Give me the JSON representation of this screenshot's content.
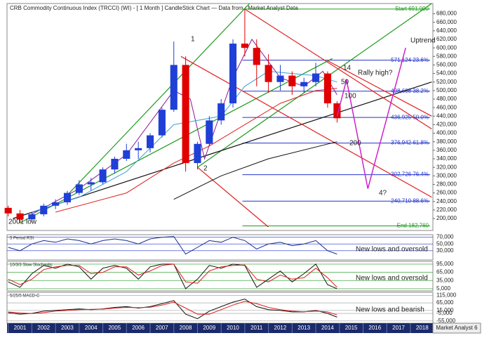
{
  "chart_data": [
    {
      "type": "candlestick",
      "title": "CRB Commodity Continuous Index (TRCCI) (WI) -  [ 1 Month ] CandleStick Chart — Data from : Market Analyst Data",
      "x": [
        2001.0,
        2001.5,
        2002.0,
        2002.5,
        2003.0,
        2003.5,
        2004.0,
        2004.5,
        2005.0,
        2005.5,
        2006.0,
        2006.5,
        2007.0,
        2007.5,
        2008.0,
        2008.5,
        2009.0,
        2009.5,
        2010.0,
        2010.5,
        2011.0,
        2011.5,
        2012.0,
        2012.5,
        2013.0,
        2013.5,
        2014.0,
        2014.5,
        2014.9
      ],
      "open": [
        225000,
        212000,
        198000,
        210000,
        230000,
        238000,
        260000,
        280000,
        285000,
        315000,
        340000,
        360000,
        365000,
        395000,
        455000,
        560000,
        330000,
        375000,
        430000,
        470000,
        610000,
        600000,
        560000,
        520000,
        535000,
        510000,
        520000,
        540000,
        470000
      ],
      "high": [
        230000,
        220000,
        215000,
        235000,
        245000,
        265000,
        290000,
        295000,
        320000,
        345000,
        375000,
        380000,
        400000,
        460000,
        615000,
        580000,
        380000,
        440000,
        480000,
        620000,
        691000,
        620000,
        585000,
        560000,
        545000,
        530000,
        565000,
        545000,
        475000
      ],
      "low": [
        205000,
        190000,
        192000,
        205000,
        222000,
        232000,
        255000,
        265000,
        280000,
        305000,
        335000,
        340000,
        355000,
        390000,
        450000,
        310000,
        315000,
        370000,
        420000,
        460000,
        580000,
        510000,
        495000,
        500000,
        490000,
        495000,
        510000,
        460000,
        425000
      ],
      "close": [
        212000,
        198000,
        210000,
        230000,
        238000,
        260000,
        280000,
        285000,
        315000,
        340000,
        360000,
        365000,
        395000,
        455000,
        560000,
        330000,
        375000,
        430000,
        470000,
        610000,
        600000,
        560000,
        520000,
        535000,
        510000,
        520000,
        540000,
        470000,
        435000
      ],
      "up_color": "#1f3fd6",
      "down_color": "#e00000",
      "xlim": [
        2000.95,
        2018.95
      ],
      "xticks": [
        2001,
        2002,
        2003,
        2004,
        2005,
        2006,
        2007,
        2008,
        2009,
        2010,
        2011,
        2012,
        2013,
        2014,
        2015,
        2016,
        2017,
        2018
      ],
      "ylim": [
        172000,
        704000
      ],
      "yticks": [
        {
          "value": 200000,
          "label": "200,000"
        },
        {
          "value": 220000,
          "label": "220,000"
        },
        {
          "value": 240000,
          "label": "240,000"
        },
        {
          "value": 260000,
          "label": "260,000"
        },
        {
          "value": 280000,
          "label": "280,000"
        },
        {
          "value": 300000,
          "label": "300,000"
        },
        {
          "value": 320000,
          "label": "320,000"
        },
        {
          "value": 340000,
          "label": "340,000"
        },
        {
          "value": 360000,
          "label": "360,000"
        },
        {
          "value": 380000,
          "label": "380,000"
        },
        {
          "value": 400000,
          "label": "400,000"
        },
        {
          "value": 420000,
          "label": "420,000"
        },
        {
          "value": 440000,
          "label": "440,000"
        },
        {
          "value": 460000,
          "label": "460,000"
        },
        {
          "value": 480000,
          "label": "480,000"
        },
        {
          "value": 500000,
          "label": "500,000"
        },
        {
          "value": 520000,
          "label": "520,000"
        },
        {
          "value": 540000,
          "label": "540,000"
        },
        {
          "value": 560000,
          "label": "560,000"
        },
        {
          "value": 580000,
          "label": "580,000"
        },
        {
          "value": 600000,
          "label": "600,000"
        },
        {
          "value": 620000,
          "label": "620,000"
        },
        {
          "value": 640000,
          "label": "640,000"
        },
        {
          "value": 660000,
          "label": "660,000"
        },
        {
          "value": 680000,
          "label": "680,000"
        }
      ],
      "moving_averages": [
        {
          "name": "14",
          "color": "#8a1a9a",
          "x": [
            2002,
            2004,
            2006,
            2008,
            2008.7,
            2009.3,
            2010.5,
            2011.3,
            2012.5,
            2013.5,
            2014.3,
            2014.9
          ],
          "values": [
            210000,
            270000,
            350000,
            500000,
            480000,
            340000,
            530000,
            620000,
            530000,
            510000,
            545000,
            490000
          ]
        },
        {
          "name": "50",
          "color": "#3aa0d8",
          "x": [
            2002,
            2004,
            2006,
            2008,
            2009,
            2010,
            2011,
            2012,
            2013,
            2014,
            2014.9
          ],
          "values": [
            215000,
            250000,
            310000,
            420000,
            430000,
            440000,
            510000,
            545000,
            540000,
            535000,
            520000
          ]
        },
        {
          "name": "100",
          "color": "#e02020",
          "x": [
            2003,
            2006,
            2008,
            2009.5,
            2011,
            2012.5,
            2014,
            2014.9
          ],
          "values": [
            215000,
            260000,
            330000,
            370000,
            420000,
            470000,
            500000,
            505000
          ]
        },
        {
          "name": "200",
          "color": "#111111",
          "x": [
            2008,
            2010,
            2012,
            2014.9
          ],
          "values": [
            245000,
            300000,
            340000,
            380000
          ]
        }
      ],
      "fib_levels": [
        {
          "value": 691090,
          "label": "Start 691,090",
          "color": "#1a9a1a"
        },
        {
          "value": 571124,
          "label": "571,124 23.6%",
          "color": "#2233cc"
        },
        {
          "value": 498608,
          "label": "498,608 38.2%",
          "color": "#2233cc"
        },
        {
          "value": 436925,
          "label": "436,925 50.0%",
          "color": "#2233cc"
        },
        {
          "value": 376942,
          "label": "376,942 61.8%",
          "color": "#2233cc"
        },
        {
          "value": 302726,
          "label": "302,726 76.4%",
          "color": "#2233cc"
        },
        {
          "value": 240710,
          "label": "240,710 88.6%",
          "color": "#2233cc"
        },
        {
          "value": 182760,
          "label": "End 182,760",
          "color": "#1a9a1a"
        }
      ],
      "trendlines": [
        {
          "color": "#1a9a1a",
          "x": [
            2001.5,
            2014.7
          ],
          "values": [
            190000,
            575000
          ]
        },
        {
          "color": "#1a9a1a",
          "x": [
            2003.5,
            2011.2
          ],
          "values": [
            255000,
            704000
          ]
        },
        {
          "color": "#1a9a1a",
          "x": [
            2009,
            2018.9
          ],
          "values": [
            320000,
            704000
          ]
        },
        {
          "color": "#111111",
          "x": [
            2001.2,
            2018.9
          ],
          "values": [
            200000,
            520000
          ]
        },
        {
          "color": "#e02020",
          "x": [
            2011,
            2018.9
          ],
          "values": [
            691000,
            410000
          ]
        },
        {
          "color": "#e02020",
          "x": [
            2008.3,
            2018.9
          ],
          "values": [
            580000,
            250000
          ]
        },
        {
          "color": "#e02020",
          "x": [
            2009,
            2012
          ],
          "values": [
            320000,
            180000
          ]
        },
        {
          "color": "#e02020",
          "x": [
            2014.5,
            2018.9
          ],
          "values": [
            570000,
            440000
          ]
        }
      ],
      "projection": {
        "color": "#cc22cc",
        "x": [
          2014.9,
          2015.3,
          2016.2,
          2017.8
        ],
        "values": [
          440000,
          525000,
          270000,
          600000
        ]
      },
      "annotations": [
        "1",
        "2",
        "Rally high?",
        "4?",
        "Uptrend",
        "2001 low"
      ],
      "footer": "Market Analyst 6"
    },
    {
      "type": "line",
      "title": "5 Period RSI",
      "annotation": "New lows and oversold",
      "x": [
        2001.0,
        2001.5,
        2002.0,
        2002.5,
        2003.0,
        2003.5,
        2004.0,
        2004.5,
        2005.0,
        2005.5,
        2006.0,
        2006.5,
        2007.0,
        2007.5,
        2008.0,
        2008.5,
        2009.0,
        2009.5,
        2010.0,
        2010.5,
        2011.0,
        2011.5,
        2012.0,
        2012.5,
        2013.0,
        2013.5,
        2014.0,
        2014.5,
        2014.9
      ],
      "series": [
        {
          "color": "#1a2a8a",
          "values": [
            40000,
            30000,
            50000,
            60000,
            55000,
            65000,
            60000,
            50000,
            60000,
            65000,
            60000,
            50000,
            65000,
            70000,
            72000,
            20000,
            40000,
            60000,
            55000,
            70000,
            60000,
            35000,
            50000,
            55000,
            45000,
            50000,
            60000,
            30000,
            20000
          ]
        }
      ],
      "ylim": [
        2500,
        77500
      ],
      "yticks": [
        {
          "value": 30000,
          "label": "30,000"
        },
        {
          "value": 50000,
          "label": "50,000"
        },
        {
          "value": 70000,
          "label": "70,000"
        }
      ],
      "ref_color": "#2233cc"
    },
    {
      "type": "line",
      "title": "10/3/3 Slow Stochastic",
      "annotation": "New lows and oversold",
      "x": [
        2001.0,
        2001.5,
        2002.0,
        2002.5,
        2003.0,
        2003.5,
        2004.0,
        2004.5,
        2005.0,
        2005.5,
        2006.0,
        2006.5,
        2007.0,
        2007.5,
        2008.0,
        2008.5,
        2009.0,
        2009.5,
        2010.0,
        2010.5,
        2011.0,
        2011.5,
        2012.0,
        2012.5,
        2013.0,
        2013.5,
        2014.0,
        2014.5,
        2014.9
      ],
      "series": [
        {
          "color": "#111111",
          "values": [
            30000,
            10000,
            60000,
            90000,
            80000,
            95000,
            85000,
            40000,
            80000,
            90000,
            80000,
            40000,
            85000,
            95000,
            95000,
            5000,
            40000,
            90000,
            80000,
            95000,
            90000,
            10000,
            40000,
            70000,
            30000,
            60000,
            95000,
            20000,
            5000
          ]
        },
        {
          "color": "#e02020",
          "values": [
            40000,
            20000,
            40000,
            75000,
            85000,
            90000,
            90000,
            60000,
            65000,
            85000,
            85000,
            55000,
            70000,
            90000,
            95000,
            30000,
            25000,
            70000,
            85000,
            90000,
            92000,
            40000,
            30000,
            55000,
            40000,
            45000,
            80000,
            45000,
            10000
          ]
        }
      ],
      "ylim": [
        -3000,
        105000
      ],
      "yticks": [
        {
          "value": 5000,
          "label": "5,000"
        },
        {
          "value": 35000,
          "label": "35,000"
        },
        {
          "value": 65000,
          "label": "65,000"
        },
        {
          "value": 95000,
          "label": "95,000"
        }
      ],
      "ref_color": "#1a9a1a"
    },
    {
      "type": "line",
      "title": "5/25/5 MACD-C",
      "annotation": "New lows and bearish",
      "x": [
        2001.0,
        2001.5,
        2002.0,
        2002.5,
        2003.0,
        2003.5,
        2004.0,
        2004.5,
        2005.0,
        2005.5,
        2006.0,
        2006.5,
        2007.0,
        2007.5,
        2008.0,
        2008.5,
        2009.0,
        2009.5,
        2010.0,
        2010.5,
        2011.0,
        2011.5,
        2012.0,
        2012.5,
        2013.0,
        2013.5,
        2014.0,
        2014.5,
        2014.9
      ],
      "series": [
        {
          "color": "#111111",
          "values": [
            0,
            -10000,
            -5000,
            10000,
            15000,
            20000,
            25000,
            20000,
            25000,
            35000,
            40000,
            30000,
            40000,
            60000,
            80000,
            -10000,
            -40000,
            10000,
            40000,
            70000,
            90000,
            40000,
            20000,
            15000,
            5000,
            5000,
            15000,
            -5000,
            -30000
          ]
        },
        {
          "color": "#e02020",
          "values": [
            5000,
            -2000,
            -6000,
            0,
            10000,
            15000,
            20000,
            22000,
            23000,
            30000,
            35000,
            33000,
            36000,
            50000,
            70000,
            30000,
            -10000,
            -10000,
            20000,
            50000,
            75000,
            60000,
            35000,
            20000,
            10000,
            6000,
            10000,
            5000,
            -15000
          ]
        }
      ],
      "ylim": [
        -70000,
        135000
      ],
      "yticks": [
        {
          "value": -55000,
          "label": "-55,000"
        },
        {
          "value": -5000,
          "label": "-5,000"
        },
        {
          "value": 15000,
          "label": "15,000"
        },
        {
          "value": 65000,
          "label": "65,000"
        },
        {
          "value": 115000,
          "label": "115,000"
        }
      ],
      "ref_color": "#999999"
    }
  ]
}
